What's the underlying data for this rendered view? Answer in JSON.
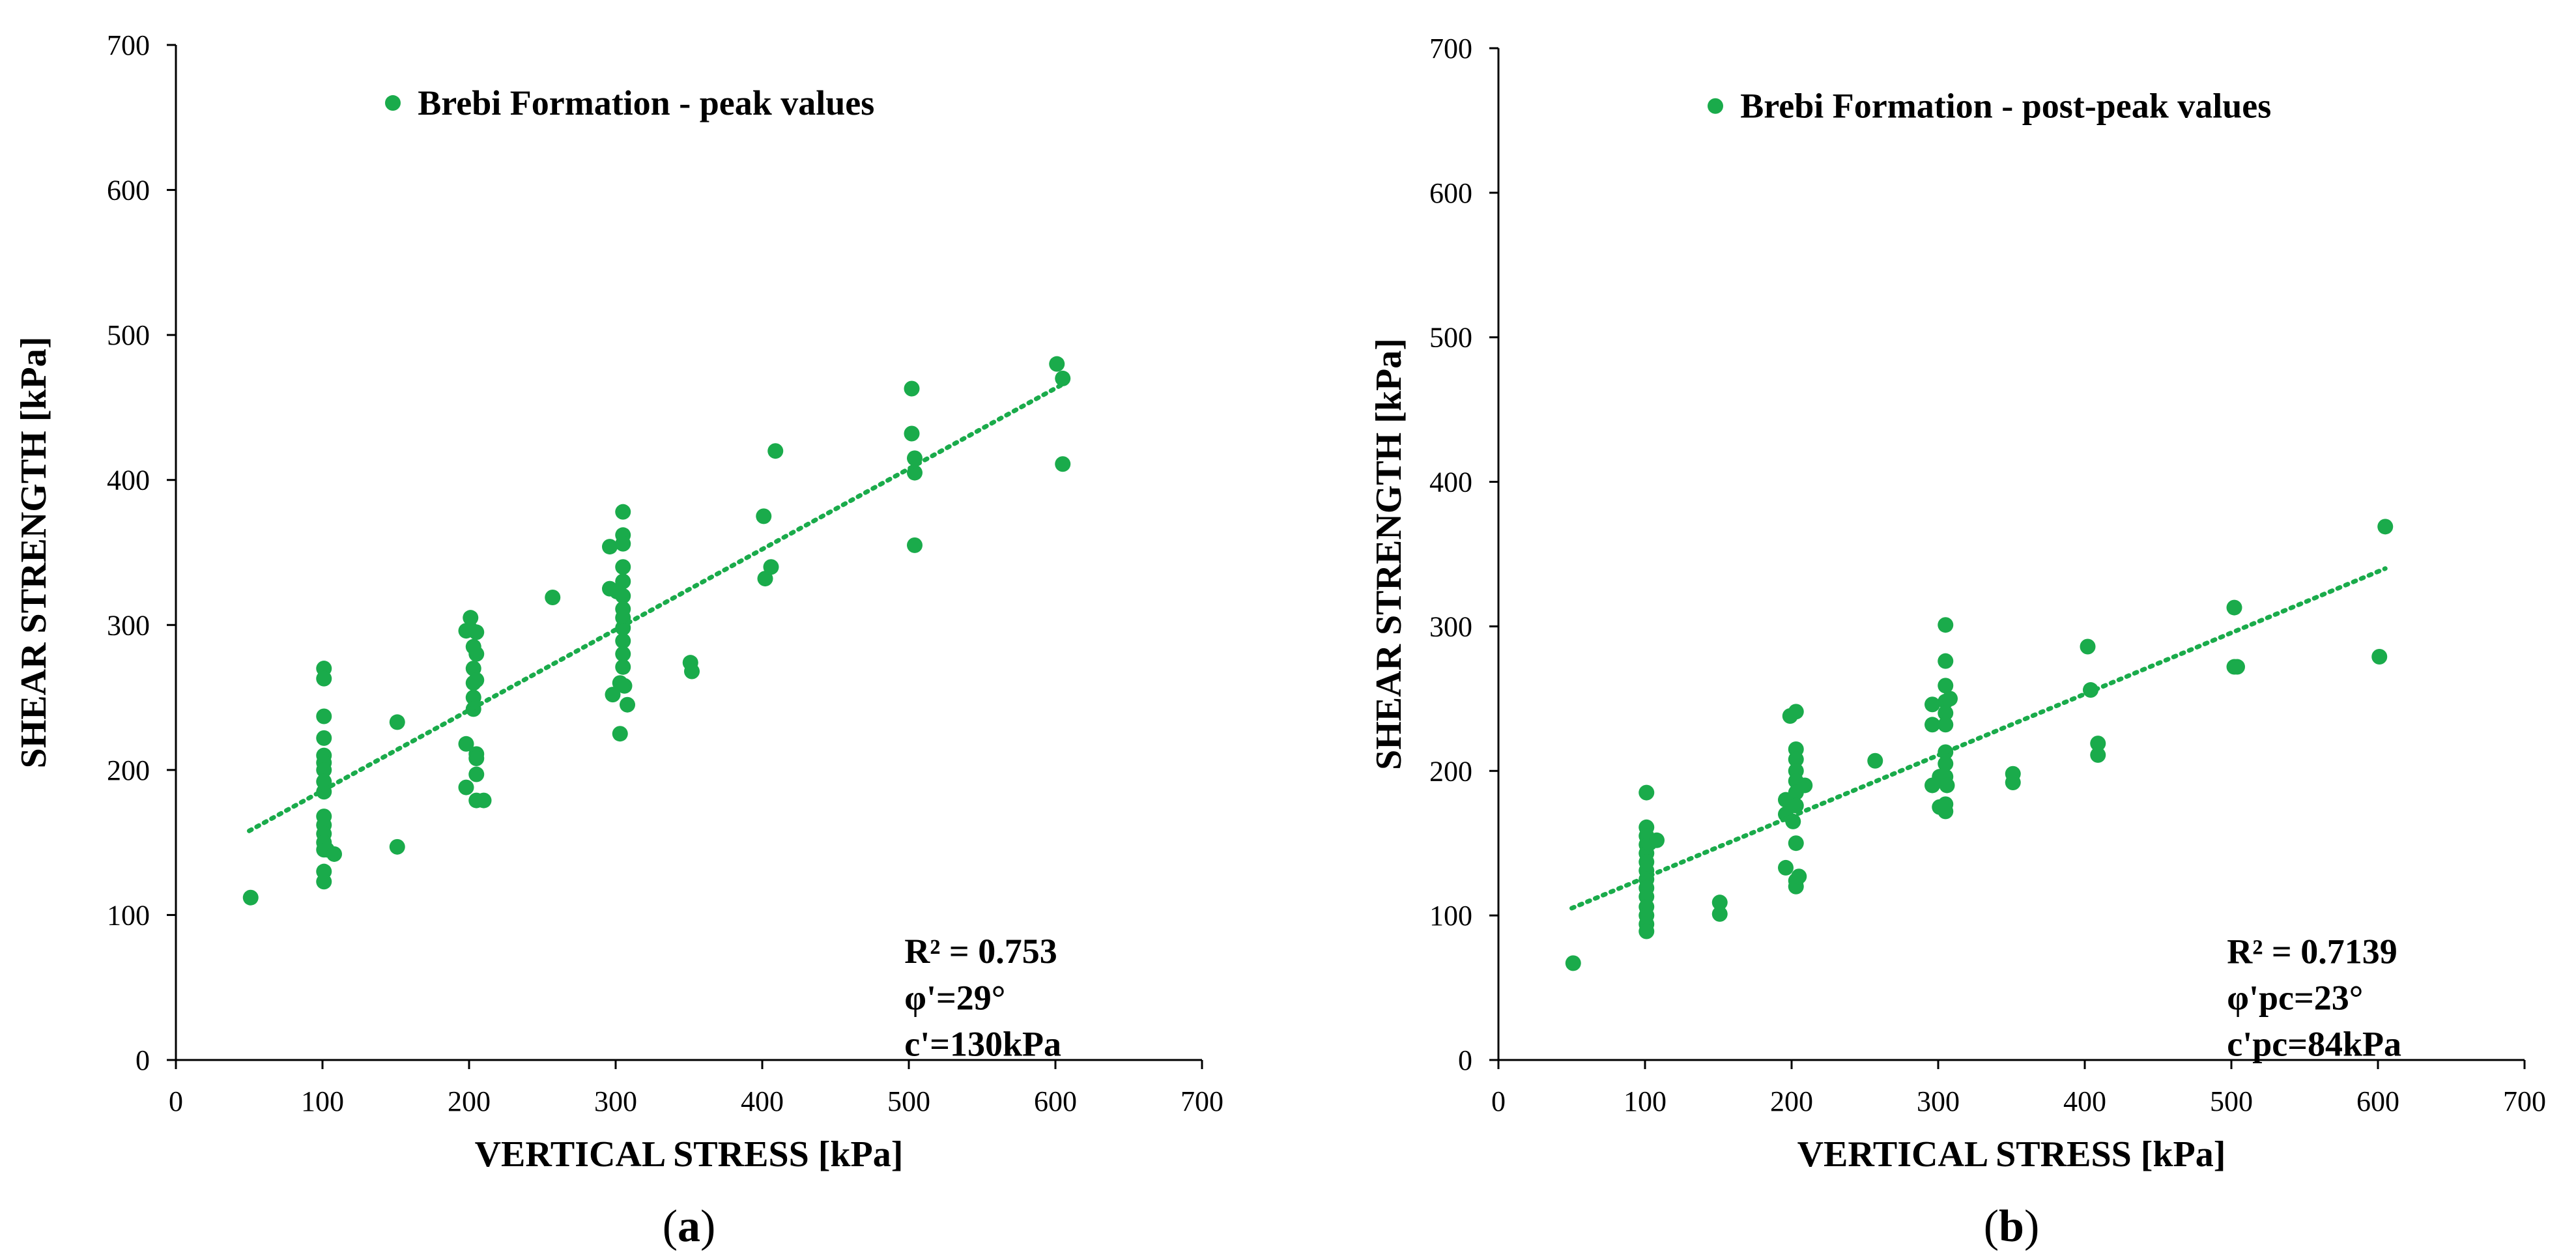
{
  "chart_data": [
    {
      "type": "scatter",
      "panel_label": "a",
      "legend": "Brebi Formation - peak values",
      "xlabel": "VERTICAL STRESS [kPa]",
      "ylabel": "SHEAR STRENGTH [kPa]",
      "xlim": [
        0,
        700
      ],
      "ylim": [
        0,
        700
      ],
      "xticks": [
        0,
        100,
        200,
        300,
        400,
        500,
        600,
        700
      ],
      "yticks": [
        0,
        100,
        200,
        300,
        400,
        500,
        600,
        700
      ],
      "grid": false,
      "legend_position": "top-center",
      "color": "#1aab4b",
      "trendline": {
        "x": [
          50,
          605
        ],
        "y": [
          158,
          466
        ],
        "style": "dotted"
      },
      "annotations": [
        "R² = 0.753",
        "φ'=29°",
        "c'=130kPa"
      ],
      "points": [
        [
          51,
          112
        ],
        [
          101,
          270
        ],
        [
          101,
          263
        ],
        [
          101,
          237
        ],
        [
          101,
          222
        ],
        [
          101,
          210
        ],
        [
          101,
          205
        ],
        [
          101,
          200
        ],
        [
          101,
          192
        ],
        [
          101,
          185
        ],
        [
          101,
          168
        ],
        [
          101,
          162
        ],
        [
          101,
          156
        ],
        [
          101,
          150
        ],
        [
          101,
          145
        ],
        [
          101,
          130
        ],
        [
          101,
          123
        ],
        [
          103,
          145
        ],
        [
          108,
          142
        ],
        [
          151,
          233
        ],
        [
          151,
          147
        ],
        [
          198,
          296
        ],
        [
          198,
          218
        ],
        [
          198,
          188
        ],
        [
          201,
          305
        ],
        [
          201,
          297
        ],
        [
          203,
          285
        ],
        [
          203,
          270
        ],
        [
          203,
          260
        ],
        [
          203,
          250
        ],
        [
          203,
          242
        ],
        [
          205,
          295
        ],
        [
          205,
          280
        ],
        [
          205,
          262
        ],
        [
          205,
          211
        ],
        [
          205,
          208
        ],
        [
          205,
          197
        ],
        [
          205,
          179
        ],
        [
          210,
          179
        ],
        [
          257,
          319
        ],
        [
          296,
          354
        ],
        [
          296,
          325
        ],
        [
          298,
          252
        ],
        [
          301,
          323
        ],
        [
          303,
          260
        ],
        [
          303,
          225
        ],
        [
          305,
          378
        ],
        [
          305,
          362
        ],
        [
          305,
          356
        ],
        [
          305,
          340
        ],
        [
          305,
          330
        ],
        [
          305,
          320
        ],
        [
          305,
          311
        ],
        [
          305,
          305
        ],
        [
          305,
          298
        ],
        [
          305,
          289
        ],
        [
          305,
          280
        ],
        [
          305,
          271
        ],
        [
          306,
          258
        ],
        [
          308,
          245
        ],
        [
          351,
          274
        ],
        [
          352,
          268
        ],
        [
          401,
          375
        ],
        [
          402,
          332
        ],
        [
          406,
          340
        ],
        [
          409,
          420
        ],
        [
          502,
          463
        ],
        [
          502,
          432
        ],
        [
          504,
          415
        ],
        [
          504,
          405
        ],
        [
          504,
          355
        ],
        [
          601,
          480
        ],
        [
          605,
          470
        ],
        [
          605,
          411
        ]
      ]
    },
    {
      "type": "scatter",
      "panel_label": "b",
      "legend": "Brebi Formation - post-peak values",
      "xlabel": "VERTICAL STRESS [kPa]",
      "ylabel": "SHEAR STRENGTH [kPa]",
      "xlim": [
        0,
        700
      ],
      "ylim": [
        0,
        700
      ],
      "xticks": [
        0,
        100,
        200,
        300,
        400,
        500,
        600,
        700
      ],
      "yticks": [
        0,
        100,
        200,
        300,
        400,
        500,
        600,
        700
      ],
      "grid": false,
      "legend_position": "top-center",
      "color": "#1aab4b",
      "trendline": {
        "x": [
          50,
          605
        ],
        "y": [
          105,
          340
        ],
        "style": "dotted"
      },
      "annotations": [
        "R² = 0.7139",
        "φ'pc=23°",
        "c'pc=84kPa"
      ],
      "points": [
        [
          51,
          67
        ],
        [
          101,
          185
        ],
        [
          101,
          161
        ],
        [
          101,
          155
        ],
        [
          101,
          149
        ],
        [
          101,
          143
        ],
        [
          101,
          137
        ],
        [
          101,
          131
        ],
        [
          101,
          125
        ],
        [
          101,
          119
        ],
        [
          101,
          113
        ],
        [
          101,
          106
        ],
        [
          101,
          100
        ],
        [
          101,
          94
        ],
        [
          101,
          89
        ],
        [
          103,
          150
        ],
        [
          108,
          152
        ],
        [
          151,
          109
        ],
        [
          151,
          101
        ],
        [
          196,
          180
        ],
        [
          196,
          170
        ],
        [
          196,
          133
        ],
        [
          199,
          238
        ],
        [
          201,
          165
        ],
        [
          203,
          241
        ],
        [
          203,
          215
        ],
        [
          203,
          208
        ],
        [
          203,
          200
        ],
        [
          203,
          193
        ],
        [
          203,
          185
        ],
        [
          203,
          176
        ],
        [
          203,
          150
        ],
        [
          203,
          124
        ],
        [
          203,
          120
        ],
        [
          205,
          127
        ],
        [
          209,
          190
        ],
        [
          257,
          207
        ],
        [
          296,
          246
        ],
        [
          296,
          232
        ],
        [
          296,
          190
        ],
        [
          301,
          196
        ],
        [
          301,
          175
        ],
        [
          305,
          301
        ],
        [
          305,
          276
        ],
        [
          305,
          259
        ],
        [
          305,
          248
        ],
        [
          305,
          240
        ],
        [
          305,
          232
        ],
        [
          305,
          213
        ],
        [
          305,
          205
        ],
        [
          305,
          196
        ],
        [
          305,
          177
        ],
        [
          305,
          172
        ],
        [
          306,
          190
        ],
        [
          308,
          250
        ],
        [
          351,
          198
        ],
        [
          351,
          192
        ],
        [
          402,
          286
        ],
        [
          404,
          256
        ],
        [
          409,
          219
        ],
        [
          409,
          211
        ],
        [
          502,
          313
        ],
        [
          502,
          272
        ],
        [
          504,
          272
        ],
        [
          601,
          279
        ],
        [
          605,
          369
        ]
      ]
    }
  ]
}
